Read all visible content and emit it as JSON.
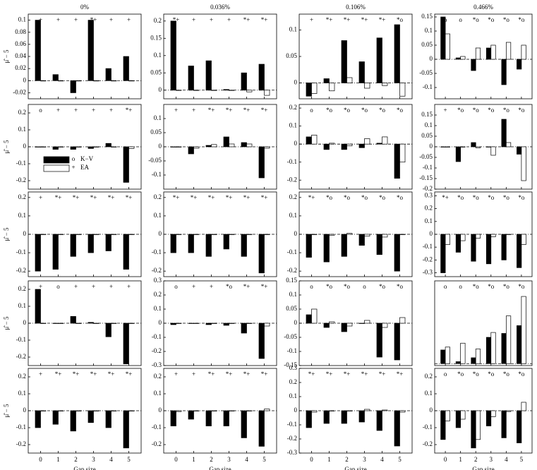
{
  "chart_data": [
    {
      "type": "bar",
      "title": "0%",
      "ylabel": "μ̂ − 5",
      "ylim": [
        -0.03,
        0.11
      ],
      "yticks": [
        -0.02,
        0,
        0.02,
        0.04,
        0.06,
        0.08,
        0.1
      ],
      "series": [
        {
          "color": "#000000",
          "values": [
            0.1,
            0.01,
            -0.02,
            0.1,
            0.02,
            0.04
          ]
        },
        {
          "color": "#ffffff",
          "values": [
            0,
            0,
            0,
            0,
            0,
            0
          ]
        }
      ],
      "markers": [
        "+",
        "+",
        "+",
        "*+",
        "+",
        "+"
      ]
    },
    {
      "type": "bar",
      "title": "0.036%",
      "ylim": [
        -0.025,
        0.22
      ],
      "yticks": [
        0,
        0.05,
        0.1,
        0.15,
        0.2
      ],
      "series": [
        {
          "color": "#000000",
          "values": [
            0.2,
            0.07,
            0.085,
            0.002,
            0.05,
            0.075
          ]
        },
        {
          "color": "#ffffff",
          "values": [
            0,
            0,
            0,
            0,
            -0.005,
            -0.015
          ]
        }
      ],
      "markers": [
        "*+",
        "+",
        "+",
        "+",
        "*+",
        "*+"
      ]
    },
    {
      "type": "bar",
      "title": "0.106%",
      "ylim": [
        -0.03,
        0.13
      ],
      "yticks": [
        0,
        0.05,
        0.1
      ],
      "series": [
        {
          "color": "#000000",
          "values": [
            -0.025,
            0.008,
            0.08,
            0.04,
            0.085,
            0.11
          ]
        },
        {
          "color": "#ffffff",
          "values": [
            -0.02,
            -0.015,
            0.01,
            -0.01,
            -0.005,
            -0.025
          ]
        }
      ],
      "markers": [
        "+",
        "*+",
        "*+",
        "*+",
        "*+",
        "*o"
      ]
    },
    {
      "type": "bar",
      "title": "0.466%",
      "ylim": [
        -0.14,
        0.16
      ],
      "yticks": [
        -0.1,
        -0.05,
        0,
        0.05,
        0.1,
        0.15
      ],
      "series": [
        {
          "color": "#000000",
          "values": [
            0.15,
            0.005,
            -0.04,
            0.04,
            -0.09,
            -0.035
          ]
        },
        {
          "color": "#ffffff",
          "values": [
            0.09,
            0.01,
            0.04,
            0.05,
            0.06,
            0.05
          ]
        }
      ],
      "markers": [
        "o",
        "o",
        "*o",
        "*o",
        "*o",
        "*o"
      ]
    },
    {
      "type": "bar",
      "ylabel": "μ̂ − 5",
      "legend": "lower-left",
      "ylim": [
        -0.25,
        0.25
      ],
      "yticks": [
        -0.2,
        -0.1,
        0,
        0.1,
        0.2
      ],
      "series": [
        {
          "name": "K−V",
          "symbol": "o",
          "color": "#000000",
          "values": [
            0,
            -0.015,
            -0.015,
            -0.01,
            0.02,
            -0.21
          ]
        },
        {
          "name": "EA",
          "symbol": "+",
          "color": "#ffffff",
          "values": [
            0,
            0,
            0,
            0,
            0,
            -0.01
          ]
        }
      ],
      "markers": [
        "o",
        "+",
        "+",
        "+",
        "+",
        "*+"
      ]
    },
    {
      "type": "bar",
      "ylim": [
        -0.15,
        0.15
      ],
      "yticks": [
        -0.1,
        -0.05,
        0,
        0.05,
        0.1
      ],
      "series": [
        {
          "color": "#000000",
          "values": [
            0,
            -0.025,
            0.005,
            0.035,
            0.015,
            -0.11
          ]
        },
        {
          "color": "#ffffff",
          "values": [
            0,
            -0.005,
            0.008,
            0.01,
            0.01,
            -0.005
          ]
        }
      ],
      "markers": [
        "+",
        "+",
        "*+",
        "*+",
        "*+",
        "*+"
      ]
    },
    {
      "type": "bar",
      "ylim": [
        -0.25,
        0.22
      ],
      "yticks": [
        -0.2,
        -0.1,
        0,
        0.1,
        0.2
      ],
      "series": [
        {
          "color": "#000000",
          "values": [
            0.04,
            -0.03,
            -0.03,
            -0.02,
            0.005,
            -0.19
          ]
        },
        {
          "color": "#ffffff",
          "values": [
            0.05,
            0.005,
            -0.01,
            0.03,
            0.04,
            -0.1
          ]
        }
      ],
      "markers": [
        "o",
        "*o",
        "*o",
        "*o",
        "*o",
        "*o"
      ]
    },
    {
      "type": "bar",
      "ylim": [
        -0.2,
        0.2
      ],
      "yticks": [
        -0.2,
        -0.15,
        -0.1,
        -0.05,
        0,
        0.05,
        0.1,
        0.15
      ],
      "series": [
        {
          "color": "#000000",
          "values": [
            0,
            -0.07,
            0.02,
            0,
            0.13,
            -0.035
          ]
        },
        {
          "color": "#ffffff",
          "values": [
            0,
            0,
            -0.005,
            -0.04,
            0.02,
            -0.16
          ]
        }
      ],
      "markers": [
        "+",
        "*o",
        "*o",
        "*o",
        "*o",
        "*o"
      ]
    },
    {
      "type": "bar",
      "ylabel": "μ̂ − 5",
      "ylim": [
        -0.23,
        0.23
      ],
      "yticks": [
        -0.2,
        -0.1,
        0,
        0.1,
        0.2
      ],
      "series": [
        {
          "color": "#000000",
          "values": [
            -0.2,
            -0.19,
            -0.12,
            -0.1,
            -0.09,
            -0.19
          ]
        },
        {
          "color": "#ffffff",
          "values": [
            0,
            0,
            0,
            0,
            0,
            0
          ]
        }
      ],
      "markers": [
        "+",
        "*+",
        "*+",
        "*+",
        "*+",
        "*+"
      ]
    },
    {
      "type": "bar",
      "ylim": [
        -0.23,
        0.23
      ],
      "yticks": [
        -0.2,
        -0.1,
        0,
        0.1,
        0.2
      ],
      "series": [
        {
          "color": "#000000",
          "values": [
            -0.1,
            -0.1,
            -0.12,
            -0.08,
            -0.12,
            -0.21
          ]
        },
        {
          "color": "#ffffff",
          "values": [
            0,
            0,
            0,
            0,
            0,
            0
          ]
        }
      ],
      "markers": [
        "*+",
        "*+",
        "*+",
        "*+",
        "*+",
        "*+"
      ]
    },
    {
      "type": "bar",
      "ylim": [
        -0.23,
        0.23
      ],
      "yticks": [
        -0.2,
        -0.1,
        0,
        0.1,
        0.2
      ],
      "series": [
        {
          "color": "#000000",
          "values": [
            -0.125,
            -0.15,
            -0.12,
            -0.06,
            -0.11,
            -0.2
          ]
        },
        {
          "color": "#ffffff",
          "values": [
            0,
            -0.005,
            0.005,
            -0.01,
            -0.015,
            0
          ]
        }
      ],
      "markers": [
        "*+",
        "*o",
        "*o",
        "*o",
        "*o",
        "*o"
      ]
    },
    {
      "type": "bar",
      "ylim": [
        -0.33,
        0.33
      ],
      "yticks": [
        -0.3,
        -0.2,
        -0.1,
        0,
        0.1,
        0.2,
        0.3
      ],
      "series": [
        {
          "color": "#000000",
          "values": [
            -0.3,
            -0.14,
            -0.21,
            -0.23,
            -0.2,
            -0.26
          ]
        },
        {
          "color": "#ffffff",
          "values": [
            -0.08,
            -0.05,
            -0.03,
            -0.02,
            0,
            -0.08
          ]
        }
      ],
      "markers": [
        "*+",
        "*o",
        "*o",
        "*o",
        "*o",
        "*o"
      ]
    },
    {
      "type": "bar",
      "ylabel": "μ̂ − 5",
      "ylim": [
        -0.25,
        0.25
      ],
      "yticks": [
        -0.2,
        -0.1,
        0,
        0.1,
        0.2
      ],
      "series": [
        {
          "color": "#000000",
          "values": [
            0.2,
            0,
            0.04,
            0.005,
            -0.08,
            -0.24
          ]
        },
        {
          "color": "#ffffff",
          "values": [
            0,
            0,
            0,
            0,
            0,
            0
          ]
        }
      ],
      "markers": [
        "+",
        "o",
        "+",
        "+",
        "+",
        "+"
      ]
    },
    {
      "type": "bar",
      "ylim": [
        -0.3,
        0.3
      ],
      "yticks": [
        -0.3,
        -0.2,
        -0.1,
        0,
        0.1,
        0.2,
        0.3
      ],
      "series": [
        {
          "color": "#000000",
          "values": [
            -0.01,
            0,
            -0.01,
            -0.015,
            -0.07,
            -0.25
          ]
        },
        {
          "color": "#ffffff",
          "values": [
            0,
            0,
            0,
            0,
            0,
            -0.02
          ]
        }
      ],
      "markers": [
        "o",
        "+",
        "+",
        "*o",
        "*+",
        "*+"
      ]
    },
    {
      "type": "bar",
      "ylim": [
        -0.15,
        0.15
      ],
      "yticks": [
        -0.15,
        -0.1,
        -0.05,
        0,
        0.05,
        0.1,
        0.15
      ],
      "series": [
        {
          "color": "#000000",
          "values": [
            0.03,
            -0.015,
            -0.03,
            0,
            -0.12,
            -0.13
          ]
        },
        {
          "color": "#ffffff",
          "values": [
            0.05,
            0.005,
            -0.01,
            0.01,
            -0.015,
            0.02
          ]
        }
      ],
      "markers": [
        "o",
        "*o",
        "*o",
        "o",
        "*o",
        "*o"
      ]
    },
    {
      "type": "bar",
      "ylim": [
        -0.02,
        0.85
      ],
      "series": [
        {
          "color": "#000000",
          "values": [
            0.14,
            0.02,
            0.06,
            0.27,
            0.31,
            0.39
          ]
        },
        {
          "color": "#ffffff",
          "values": [
            0.17,
            0.21,
            0.15,
            0.32,
            0.49,
            0.69
          ]
        }
      ],
      "markers": [
        "o",
        "o",
        "*o",
        "*o",
        "*o",
        "*o"
      ]
    },
    {
      "type": "bar",
      "ylabel": "μ̂ − 5",
      "xlabel": "Gap size",
      "categories": [
        "0",
        "1",
        "2",
        "3",
        "4",
        "5"
      ],
      "ylim": [
        -0.25,
        0.25
      ],
      "yticks": [
        -0.2,
        -0.1,
        0,
        0.1,
        0.2
      ],
      "series": [
        {
          "color": "#000000",
          "values": [
            -0.1,
            -0.08,
            -0.12,
            -0.07,
            -0.1,
            -0.22
          ]
        },
        {
          "color": "#ffffff",
          "values": [
            0,
            0,
            0,
            0,
            0,
            0
          ]
        }
      ],
      "markers": [
        "+",
        "*+",
        "*+",
        "*+",
        "*+",
        "*+"
      ]
    },
    {
      "type": "bar",
      "xlabel": "Gap size",
      "categories": [
        "0",
        "1",
        "2",
        "3",
        "4",
        "5"
      ],
      "ylim": [
        -0.25,
        0.25
      ],
      "yticks": [
        -0.2,
        -0.1,
        0,
        0.1,
        0.2
      ],
      "series": [
        {
          "color": "#000000",
          "values": [
            -0.09,
            -0.05,
            -0.09,
            -0.09,
            -0.16,
            -0.21
          ]
        },
        {
          "color": "#ffffff",
          "values": [
            -0.005,
            0,
            0,
            0,
            0,
            0.01
          ]
        }
      ],
      "markers": [
        "+",
        "+",
        "*+",
        "*+",
        "*+",
        "*+"
      ]
    },
    {
      "type": "bar",
      "xlabel": "Gap size",
      "categories": [
        "0",
        "1",
        "2",
        "3",
        "4",
        "5"
      ],
      "ylim": [
        -0.3,
        0.3
      ],
      "yticks": [
        -0.3,
        -0.2,
        -0.1,
        0,
        0.1,
        0.2,
        0.3
      ],
      "series": [
        {
          "color": "#000000",
          "values": [
            -0.12,
            -0.09,
            -0.09,
            -0.08,
            -0.14,
            -0.25
          ]
        },
        {
          "color": "#ffffff",
          "values": [
            -0.01,
            0,
            0,
            0.01,
            0.005,
            -0.01
          ]
        }
      ],
      "markers": [
        "*+",
        "*+",
        "*+",
        "*+",
        "*+",
        "*+"
      ]
    },
    {
      "type": "bar",
      "xlabel": "Gap size",
      "categories": [
        "0",
        "1",
        "2",
        "3",
        "4",
        "5"
      ],
      "ylim": [
        -0.25,
        0.25
      ],
      "yticks": [
        -0.2,
        -0.1,
        0,
        0.1,
        0.2
      ],
      "series": [
        {
          "color": "#000000",
          "values": [
            -0.17,
            -0.1,
            -0.22,
            -0.09,
            -0.16,
            -0.19
          ]
        },
        {
          "color": "#ffffff",
          "values": [
            -0.06,
            -0.05,
            -0.17,
            -0.035,
            -0.005,
            0.05
          ]
        }
      ],
      "markers": [
        "o",
        "*o",
        "*o",
        "*o",
        "*o",
        "*o"
      ]
    }
  ]
}
